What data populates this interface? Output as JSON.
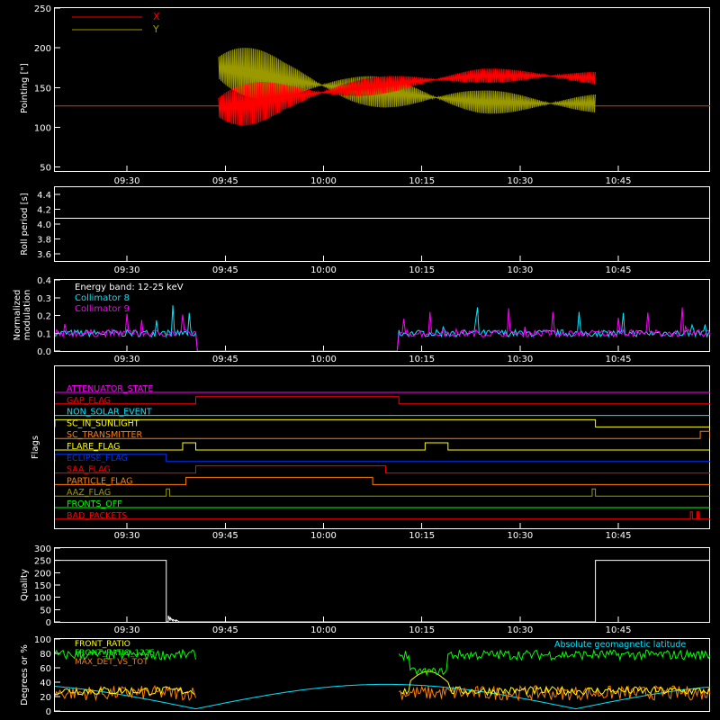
{
  "colors": {
    "background": "#000000",
    "axes": "#ffffff",
    "x": "#ff0000",
    "y": "#9a9a00",
    "cyan": "#00e5ff",
    "magenta": "#ff00ff",
    "yellow": "#ffff00",
    "green": "#00ff00",
    "orange": "#ff7f00",
    "blue": "#0033ff"
  },
  "time_ticks": [
    "09:30",
    "09:45",
    "10:00",
    "10:15",
    "10:30",
    "10:45"
  ],
  "chart_data": [
    {
      "id": "pointing",
      "type": "line",
      "ylabel": "Pointing [\"]",
      "ylim": [
        45,
        250
      ],
      "yticks": [
        50,
        100,
        150,
        200,
        250
      ],
      "xrange_min": [
        0,
        100
      ],
      "series": [
        {
          "name": "X",
          "color": "#ff0000",
          "segments": [
            {
              "x": [
                0,
                25
              ],
              "y": [
                127,
                127
              ]
            },
            {
              "x": [
                25,
                29,
                35,
                45,
                55,
                65,
                75,
                82.5
              ],
              "y_mid": [
                125,
                128,
                138,
                148,
                158,
                165,
                165,
                162
              ],
              "amp": [
                40,
                30,
                18,
                12,
                10,
                9,
                8,
                8
              ]
            },
            {
              "x": [
                82.5,
                100
              ],
              "y": [
                127,
                127
              ]
            }
          ]
        },
        {
          "name": "Y",
          "color": "#9a9a00",
          "segments": [
            {
              "x": [
                0,
                25
              ],
              "y": [
                127,
                127
              ]
            },
            {
              "x": [
                25,
                29,
                35,
                45,
                55,
                65,
                75,
                82.5
              ],
              "y_mid": [
                175,
                170,
                160,
                148,
                140,
                132,
                130,
                130
              ],
              "amp": [
                45,
                35,
                25,
                20,
                18,
                15,
                12,
                12
              ]
            },
            {
              "x": [
                82.5,
                100
              ],
              "y": [
                127,
                127
              ]
            }
          ]
        }
      ]
    },
    {
      "id": "roll",
      "type": "line",
      "ylabel": "Roll period [s]",
      "ylim": [
        3.5,
        4.5
      ],
      "yticks": [
        3.6,
        3.8,
        4.0,
        4.2,
        4.4
      ],
      "series": [
        {
          "color": "#ffffff",
          "x": [
            0,
            100
          ],
          "y": [
            4.08,
            4.08
          ]
        }
      ]
    },
    {
      "id": "modulation",
      "type": "line",
      "ylabel": [
        "Normalized",
        "modulation"
      ],
      "ylim": [
        0,
        0.4
      ],
      "yticks": [
        0.0,
        0.1,
        0.2,
        0.3,
        0.4
      ],
      "annotations": [
        "Energy band: 12-25 keV"
      ],
      "series": [
        {
          "name": "Collimator 8",
          "color": "#00e5ff",
          "active": [
            [
              0,
              21.5
            ],
            [
              52.5,
              100
            ]
          ],
          "base": 0.1,
          "inactive": 0.0
        },
        {
          "name": "Collimator 9",
          "color": "#ff00ff",
          "active": [
            [
              0,
              21.5
            ],
            [
              52.5,
              100
            ]
          ],
          "base": 0.1,
          "inactive": 0.0
        }
      ]
    },
    {
      "id": "flags",
      "type": "line",
      "ylabel": "Flags",
      "series": [
        {
          "name": "ATTENUATOR_STATE",
          "color": "#ff00ff",
          "on": []
        },
        {
          "name": "GAP_FLAG",
          "color": "#ff0000",
          "on": [
            [
              21.5,
              52.5
            ]
          ]
        },
        {
          "name": "NON_SOLAR_EVENT",
          "color": "#00e5ff",
          "on": []
        },
        {
          "name": "SC_IN_SUNLIGHT",
          "color": "#ffff00",
          "on": [
            [
              0,
              82.5
            ]
          ],
          "dips": [
            [
              0,
              16
            ]
          ]
        },
        {
          "name": "SC_TRANSMITTER",
          "color": "#ff7f00",
          "on": [
            [
              98.5,
              100
            ]
          ]
        },
        {
          "name": "FLARE_FLAG",
          "color": "#ffff00",
          "on": [
            [
              19.5,
              21.5
            ],
            [
              56.5,
              60
            ]
          ]
        },
        {
          "name": "ECLIPSE_FLAG",
          "color": "#0033ff",
          "on": [
            [
              0,
              17
            ]
          ]
        },
        {
          "name": "SAA_FLAG",
          "color": "#ff0000",
          "on": [
            [
              21.5,
              50.5
            ]
          ]
        },
        {
          "name": "PARTICLE_FLAG",
          "color": "#ff7f00",
          "on": [
            [
              20,
              48.5
            ]
          ]
        },
        {
          "name": "AAZ_FLAG",
          "color": "#9a9a00",
          "on": [
            [
              17,
              17.5
            ],
            [
              82,
              82.5
            ]
          ]
        },
        {
          "name": "FRONTS_OFF",
          "color": "#00ff00",
          "on": []
        },
        {
          "name": "BAD_PACKETS",
          "color": "#ff0000",
          "on": [
            [
              97,
              97.3
            ],
            [
              98,
              98.3
            ]
          ]
        }
      ]
    },
    {
      "id": "quality",
      "type": "line",
      "ylabel": "Quality",
      "ylim": [
        0,
        300
      ],
      "yticks": [
        0,
        50,
        100,
        150,
        200,
        250,
        300
      ],
      "series": [
        {
          "color": "#ffffff",
          "x": [
            0,
            17,
            17,
            17.3,
            17.3,
            17.6,
            17.6,
            18,
            18,
            18.5,
            18.5,
            19,
            19,
            82.5,
            82.5,
            100
          ],
          "y": [
            250,
            250,
            0,
            0,
            25,
            5,
            18,
            3,
            10,
            2,
            8,
            0,
            0,
            0,
            250,
            250
          ]
        }
      ]
    },
    {
      "id": "ratios",
      "type": "line",
      "ylabel": "Degrees or %",
      "ylim": [
        0,
        100
      ],
      "yticks": [
        0,
        20,
        40,
        60,
        80,
        100
      ],
      "legend": [
        "FRONT_RATIO",
        "FRONT_RATIO_1225",
        "MAX_DET_VS_TOT",
        "Absolute geomagnetic latitude"
      ],
      "series": [
        {
          "name": "FRONT_RATIO",
          "color": "#ffff00"
        },
        {
          "name": "FRONT_RATIO_1225",
          "color": "#00ff00"
        },
        {
          "name": "MAX_DET_VS_TOT",
          "color": "#ff7f00"
        },
        {
          "name": "Absolute geomagnetic latitude",
          "color": "#00e5ff"
        }
      ]
    }
  ]
}
